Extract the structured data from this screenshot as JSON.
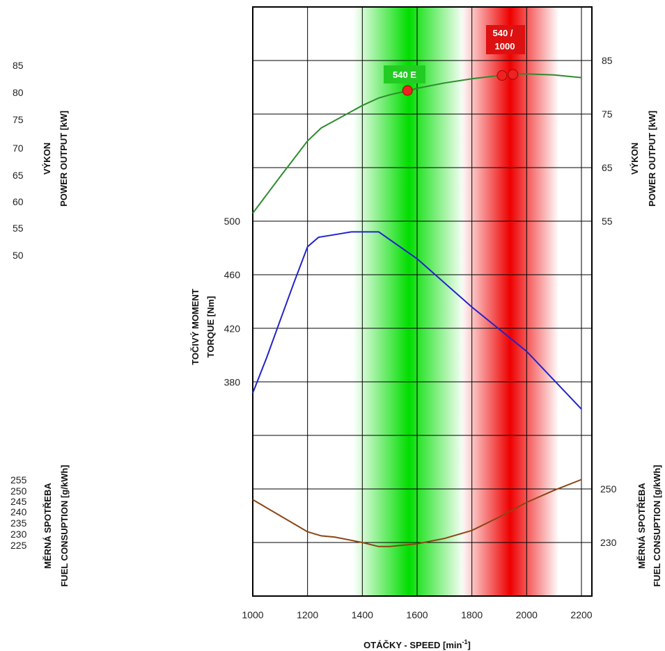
{
  "chart_data": {
    "type": "line",
    "xlabel": "OTÁČKY - SPEED [min",
    "xlabel_sup": "-1",
    "xlabel_end": "]",
    "xlim": [
      1000,
      2200
    ],
    "x_ticks": [
      1000,
      1200,
      1400,
      1600,
      1800,
      2000,
      2200
    ],
    "grid": true,
    "axes": {
      "power_left_label_1": "VÝKON",
      "power_left_label_2": "POWER OUTPUT [kW]",
      "power_left_ticks": [
        85,
        80,
        75,
        70,
        65,
        60,
        55,
        50
      ],
      "power_right_label_1": "VÝKON",
      "power_right_label_2": "POWER OUTPUT [kW]",
      "power_right_ticks": [
        85,
        75,
        65,
        55
      ],
      "torque_label_1": "TOČIVÝ MOMENT",
      "torque_label_2": "TORQUE [Nm]",
      "torque_ticks": [
        500,
        460,
        420,
        380
      ],
      "fuel_left_label_1": "MĚRNÁ SPOTŘEBA",
      "fuel_left_label_2": "FUEL CONSUPTION [g/kWh]",
      "fuel_left_ticks": [
        255,
        250,
        245,
        240,
        235,
        230,
        225
      ],
      "fuel_right_label_1": "MĚRNÁ SPOTŘEBA",
      "fuel_right_label_2": "FUEL CONSUPTION [g/kWh]",
      "fuel_right_ticks": [
        250,
        230
      ]
    },
    "bands": [
      {
        "name": "540 E",
        "x_center": 1570,
        "color": "#00dd00"
      },
      {
        "name": "540 / 1000",
        "x_center": 1940,
        "color": "#ee0000"
      }
    ],
    "series": [
      {
        "color": "#2e8b2e",
        "unit": "kW",
        "x": [
          1000,
          1100,
          1200,
          1250,
          1300,
          1400,
          1460,
          1500,
          1570,
          1600,
          1700,
          1800,
          1900,
          1960,
          2000,
          2100,
          2200
        ],
        "values": [
          56.5,
          63.3,
          70.0,
          72.4,
          73.8,
          76.6,
          78.0,
          78.6,
          79.4,
          79.8,
          80.8,
          81.6,
          82.2,
          82.5,
          82.5,
          82.3,
          81.8
        ]
      },
      {
        "color": "#2222cc",
        "unit": "Nm",
        "x": [
          1000,
          1050,
          1100,
          1150,
          1200,
          1240,
          1300,
          1360,
          1460,
          1600,
          1800,
          2000,
          2200
        ],
        "values": [
          372,
          398,
          426,
          454,
          481,
          488,
          490,
          492,
          492,
          472,
          436,
          403,
          360
        ]
      },
      {
        "color": "#8b4513",
        "unit": "g/kWh",
        "x": [
          1000,
          1100,
          1200,
          1250,
          1300,
          1400,
          1460,
          1500,
          1600,
          1700,
          1800,
          1900,
          2000,
          2100,
          2200
        ],
        "values": [
          246,
          240,
          234,
          232.5,
          232,
          230,
          228.5,
          228.5,
          229.5,
          231.5,
          234.5,
          239.5,
          245,
          249.5,
          253.5
        ]
      }
    ],
    "markers": [
      {
        "series": 0,
        "x": 1565,
        "y": 79.4
      },
      {
        "series": 0,
        "x": 1910,
        "y": 82.2
      },
      {
        "series": 0,
        "x": 1950,
        "y": 82.4
      }
    ],
    "colors": {
      "marker": "#ee2222",
      "grid": "#000000"
    }
  }
}
